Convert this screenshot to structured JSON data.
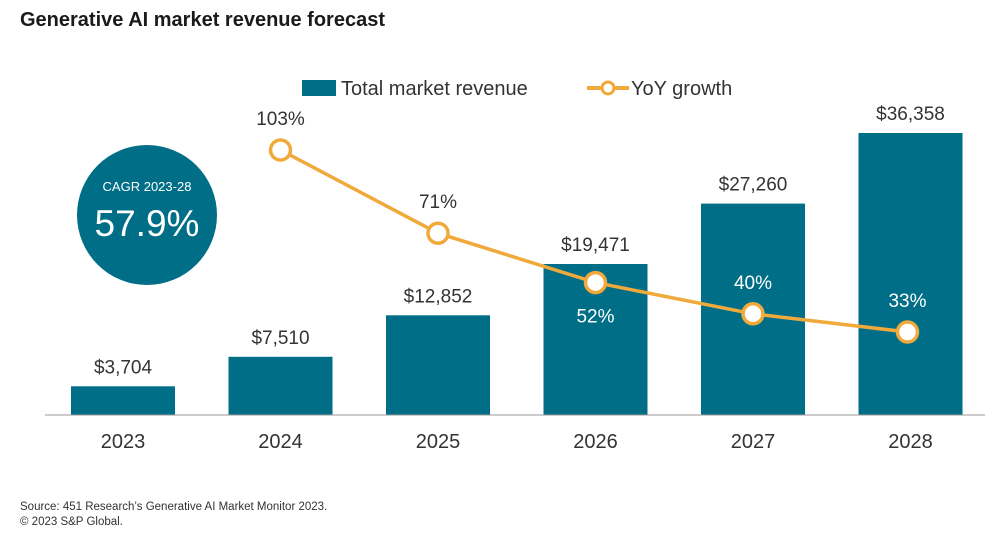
{
  "title": "Generative AI market revenue forecast",
  "cagr": {
    "label": "CAGR 2023-28",
    "value": "57.9%"
  },
  "colors": {
    "bar": "#006e87",
    "line": "#f0a93b",
    "axis": "#9a9a9a"
  },
  "source_lines": [
    "Source: 451 Research’s Generative AI Market Monitor 2023.",
    "© 2023 S&P Global."
  ],
  "chart_data": {
    "type": "bar",
    "title": "Generative AI market revenue forecast",
    "categories": [
      "2023",
      "2024",
      "2025",
      "2026",
      "2027",
      "2028"
    ],
    "legend_position": "top",
    "series": [
      {
        "name": "Total market revenue",
        "type": "bar",
        "values": [
          3704,
          7510,
          12852,
          19471,
          27260,
          36358
        ],
        "labels": [
          "$3,704",
          "$7,510",
          "$12,852",
          "$19,471",
          "$27,260",
          "$36,358"
        ]
      },
      {
        "name": "YoY growth",
        "type": "line",
        "x": [
          "2024",
          "2025",
          "2026",
          "2027",
          "2028"
        ],
        "values": [
          103,
          71,
          52,
          40,
          33
        ],
        "labels": [
          "103%",
          "71%",
          "52%",
          "40%",
          "33%"
        ]
      }
    ],
    "grid": false
  }
}
